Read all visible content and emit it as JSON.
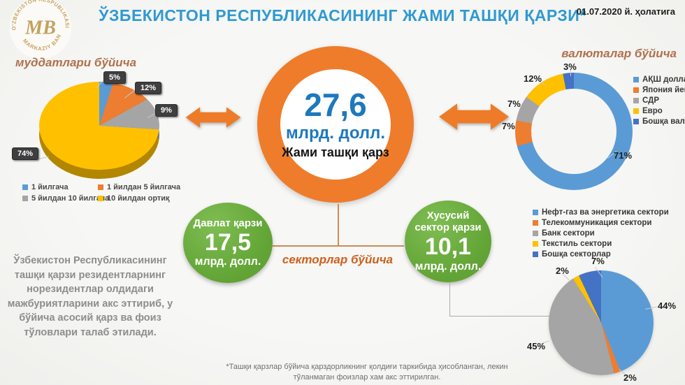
{
  "header": {
    "title": "ЎЗБЕКИСТОН РЕСПУБЛИКАСИНИНГ ЖАМИ ТАШҚИ ҚАРЗИ*",
    "date": "01.07.2020 й. ҳолатига",
    "logo": {
      "monogram": "MB",
      "ring_top": "O'ZBEKISTON RESPUBLIKASI",
      "ring_bottom": "MARKAZIY BANKI"
    }
  },
  "center": {
    "value": "27,6",
    "unit": "млрд. долл.",
    "label": "Жами ташқи қарз"
  },
  "debt": {
    "state": {
      "title": "Давлат қарзи",
      "value": "17,5",
      "unit": "млрд. долл."
    },
    "private": {
      "title": "Хусусий сектор қарзи",
      "value": "10,1",
      "unit": "млрд. долл."
    }
  },
  "icons": {
    "left_arrow": "double-arrow-icon",
    "right_arrow": "double-arrow-icon"
  },
  "colors": {
    "title_blue": "#2f9ad2",
    "value_blue": "#1e78bc",
    "accent_orange": "#ee7c2b",
    "green": "#6aaa42",
    "badge_dark": "#3f3f3f",
    "section_header_brown": "#b0714c",
    "palette": [
      "#5b9bd5",
      "#ed7d31",
      "#a5a5a5",
      "#ffc000",
      "#4472c4"
    ]
  },
  "chart_data": [
    {
      "id": "maturity",
      "type": "pie",
      "style": "3d-pie",
      "title": "муддатлари бўйича",
      "labels": [
        "1 йилгача",
        "1 йилдан 5 йилгача",
        "5 йилдан 10 йилгача",
        "10 йилдан ортиқ"
      ],
      "values": [
        5,
        12,
        9,
        74
      ],
      "value_labels": [
        "5%",
        "12%",
        "9%",
        "74%"
      ],
      "colors": [
        "#5b9bd5",
        "#ed7d31",
        "#a5a5a5",
        "#ffc000"
      ],
      "legend_position": "bottom"
    },
    {
      "id": "currency",
      "type": "pie",
      "style": "donut",
      "title": "валюталар бўйича",
      "labels": [
        "АҚШ доллари",
        "Япония йенаси",
        "СДР",
        "Евро",
        "Бошқа валюталар"
      ],
      "values": [
        71,
        7,
        7,
        12,
        3
      ],
      "value_labels": [
        "71%",
        "7%",
        "7%",
        "12%",
        "3%"
      ],
      "colors": [
        "#5b9bd5",
        "#ed7d31",
        "#a5a5a5",
        "#ffc000",
        "#4472c4"
      ],
      "legend_position": "right"
    },
    {
      "id": "sector",
      "type": "pie",
      "style": "flat-pie",
      "title": "секторлар бўйича",
      "labels": [
        "Нефт-газ ва энергетика сектори",
        "Телекоммуникация сектори",
        "Банк сектори",
        "Текстиль сектори",
        "Бошқа секторлар"
      ],
      "values": [
        44,
        2,
        45,
        2,
        7
      ],
      "value_labels": [
        "44%",
        "2%",
        "45%",
        "2%",
        "7%"
      ],
      "colors": [
        "#5b9bd5",
        "#ed7d31",
        "#a5a5a5",
        "#ffc000",
        "#4472c4"
      ],
      "legend_position": "top"
    }
  ],
  "paragraph": {
    "text": "Ўзбекистон Республикасининг ташқи қарзи резидентларнинг норезидентлар олдидаги мажбуриятларини акс эттириб, у бўйича асосий қарз ва фоиз тўловлари талаб этилади."
  },
  "footnote": {
    "text": "*Ташқи қарзлар бўйича қарздорликнинг қолдиғи таркибида ҳисобланган, лекин тўланмаган фоизлар хам акс эттирилган."
  }
}
